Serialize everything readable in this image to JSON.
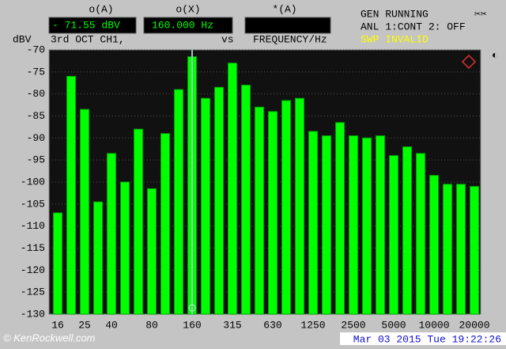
{
  "header": {
    "readout_a_label": "o(A)",
    "readout_a": "- 71.55 dBV",
    "readout_x_label": "o(X)",
    "readout_x": "160.000  Hz",
    "readout_b_label": "*(A)",
    "status_1": "GEN RUNNING",
    "status_2": "ANL 1:CONT 2: OFF",
    "status_3": "SWP INVALID",
    "y_unit": "dBV",
    "mode": "3rd OCT  CH1,",
    "vs": "vs",
    "x_label": "FREQUENCY/Hz"
  },
  "footer": {
    "watermark": "© KenRockwell.com",
    "timestamp": "Mar 03 2015 Tue 19:22:26"
  },
  "chart_data": {
    "type": "bar",
    "categories": [
      "16",
      null,
      "25",
      null,
      "40",
      null,
      null,
      "80",
      null,
      null,
      "160",
      null,
      null,
      "315",
      null,
      null,
      "630",
      null,
      null,
      "1250",
      null,
      null,
      "2500",
      null,
      null,
      "5000",
      null,
      null,
      "10000",
      null,
      null,
      "20000"
    ],
    "values": [
      -107,
      -76,
      -83.5,
      -104.5,
      -93.5,
      -100,
      -88,
      -101.5,
      -89,
      -79,
      -71.55,
      -81,
      -78.5,
      -73,
      -78,
      -83,
      -84,
      -81.5,
      -81,
      -88.5,
      -89.5,
      -86.5,
      -89.5,
      -90,
      -89.5,
      -94,
      -92,
      -93.5,
      -98.5,
      -100.5,
      -100.5,
      -101
    ],
    "color": "#00ff00",
    "ylim": [
      -130,
      -70
    ],
    "yticks": [
      -70,
      -75,
      -80,
      -85,
      -90,
      -95,
      -100,
      -105,
      -110,
      -115,
      -120,
      -125,
      -130
    ],
    "grid": true
  }
}
